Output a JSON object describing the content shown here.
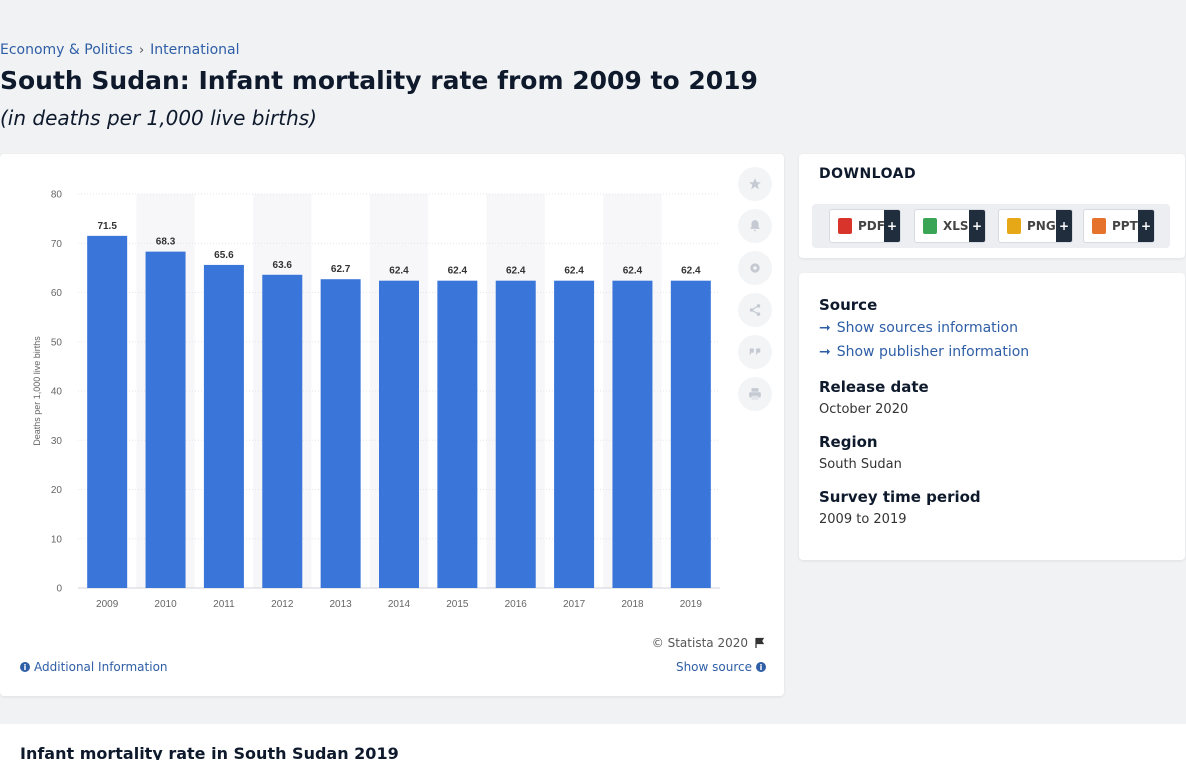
{
  "breadcrumb": {
    "item1": "Economy & Politics",
    "separator": "›",
    "item2": "International"
  },
  "page": {
    "title": "South Sudan: Infant mortality rate from 2009 to 2019",
    "subtitle": "(in deaths per 1,000 live births)"
  },
  "chart_data": {
    "type": "bar",
    "categories": [
      "2009",
      "2010",
      "2011",
      "2012",
      "2013",
      "2014",
      "2015",
      "2016",
      "2017",
      "2018",
      "2019"
    ],
    "values": [
      71.5,
      68.3,
      65.6,
      63.6,
      62.7,
      62.4,
      62.4,
      62.4,
      62.4,
      62.4,
      62.4
    ],
    "ylabel": "Deaths per 1,000 live births",
    "ylim": [
      0,
      80
    ],
    "yticks": [
      0,
      10,
      20,
      30,
      40,
      50,
      60,
      70,
      80
    ],
    "bar_color": "#3a76d9",
    "grid": true
  },
  "chart_footer": {
    "copyright": "© Statista 2020",
    "additional_info": "Additional Information",
    "show_source": "Show source"
  },
  "tools": [
    "star-icon",
    "bell-icon",
    "gear-icon",
    "share-icon",
    "quote-icon",
    "print-icon"
  ],
  "download": {
    "title": "DOWNLOAD",
    "buttons": [
      {
        "label": "PDF",
        "plus": "+",
        "color": "#d9342b"
      },
      {
        "label": "XLS",
        "plus": "+",
        "color": "#3aa655"
      },
      {
        "label": "PNG",
        "plus": "+",
        "color": "#e6a817"
      },
      {
        "label": "PPT",
        "plus": "+",
        "color": "#e5732b"
      }
    ]
  },
  "meta": {
    "source_label": "Source",
    "show_sources": "Show sources information",
    "show_publisher": "Show publisher information",
    "release_label": "Release date",
    "release_value": "October 2020",
    "region_label": "Region",
    "region_value": "South Sudan",
    "survey_label": "Survey time period",
    "survey_value": "2009 to 2019"
  },
  "bottom": {
    "title": "Infant mortality rate in South Sudan 2019"
  }
}
